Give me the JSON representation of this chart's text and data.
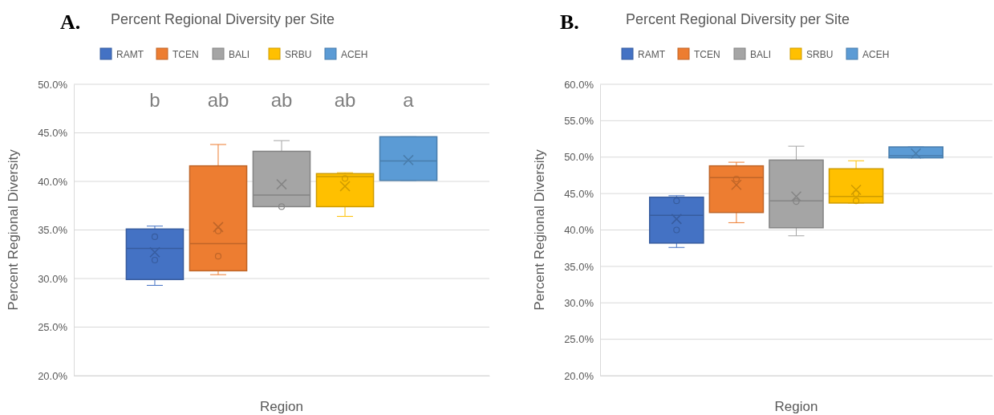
{
  "chart_data": [
    {
      "type": "box",
      "title": "A.",
      "subtitle": "Percent Regional Diversity per Site",
      "xlabel": "Region",
      "ylabel": "Percent Regional Diversity",
      "categories": [
        null
      ],
      "series": [
        {
          "name": "RAMT",
          "color": "#4472c4",
          "boxes": [
            {
              "low": 29.3,
              "q1": 29.9,
              "median": 33.1,
              "q3": 35.1,
              "high": 35.4,
              "mean": 32.7,
              "outliers": [
                34.3,
                31.9
              ]
            }
          ]
        },
        {
          "name": "TCEN",
          "color": "#ed7d31",
          "boxes": [
            {
              "low": 30.4,
              "q1": 30.8,
              "median": 33.6,
              "q3": 41.6,
              "high": 43.8,
              "mean": 35.3,
              "outliers": [
                34.9,
                32.3
              ]
            }
          ]
        },
        {
          "name": "BALI",
          "color": "#a5a5a5",
          "boxes": [
            {
              "low": 37.4,
              "q1": 37.4,
              "median": 38.6,
              "q3": 43.1,
              "high": 44.2,
              "mean": 39.7,
              "outliers": [
                37.4
              ]
            }
          ]
        },
        {
          "name": "SRBU",
          "color": "#ffc000",
          "boxes": [
            {
              "low": 36.4,
              "q1": 37.4,
              "median": 40.5,
              "q3": 40.8,
              "high": 40.9,
              "mean": 39.5,
              "outliers": [
                40.3
              ]
            }
          ]
        },
        {
          "name": "ACEH",
          "color": "#5b9bd5",
          "boxes": [
            {
              "low": 40.1,
              "q1": 40.1,
              "median": 42.1,
              "q3": 44.6,
              "high": 44.6,
              "mean": 42.2
            }
          ]
        }
      ],
      "ylim": [
        20,
        50
      ],
      "yticks": [
        {
          "value": 20,
          "label": "20.0%"
        },
        {
          "value": 25,
          "label": "25.0%"
        },
        {
          "value": 30,
          "label": "30.0%"
        },
        {
          "value": 35,
          "label": "35.0%"
        },
        {
          "value": 40,
          "label": "40.0%"
        },
        {
          "value": 45,
          "label": "45.0%"
        },
        {
          "value": 50,
          "label": "50.0%"
        }
      ],
      "annotations": [
        "b",
        "ab",
        "ab",
        "ab",
        "a"
      ],
      "grid": "y",
      "legend": "top"
    },
    {
      "type": "box",
      "title": "B.",
      "subtitle": "Percent Regional Diversity per Site",
      "xlabel": "Region",
      "ylabel": "Percent Regional Diversity",
      "categories": [
        null
      ],
      "series": [
        {
          "name": "RAMT",
          "color": "#4472c4",
          "boxes": [
            {
              "low": 37.6,
              "q1": 38.2,
              "median": 42.0,
              "q3": 44.5,
              "high": 44.7,
              "mean": 41.5,
              "outliers": [
                44.0,
                40.0
              ]
            }
          ]
        },
        {
          "name": "TCEN",
          "color": "#ed7d31",
          "boxes": [
            {
              "low": 41.0,
              "q1": 42.4,
              "median": 47.2,
              "q3": 48.8,
              "high": 49.3,
              "mean": 46.2,
              "outliers": [
                47.0
              ]
            }
          ]
        },
        {
          "name": "BALI",
          "color": "#a5a5a5",
          "boxes": [
            {
              "low": 39.2,
              "q1": 40.3,
              "median": 44.0,
              "q3": 49.6,
              "high": 51.5,
              "mean": 44.6,
              "outliers": [
                43.9
              ]
            }
          ]
        },
        {
          "name": "SRBU",
          "color": "#ffc000",
          "boxes": [
            {
              "low": 43.7,
              "q1": 43.7,
              "median": 44.6,
              "q3": 48.4,
              "high": 49.5,
              "mean": 45.5,
              "outliers": [
                45.0,
                44.0
              ]
            }
          ]
        },
        {
          "name": "ACEH",
          "color": "#5b9bd5",
          "boxes": [
            {
              "low": 49.9,
              "q1": 49.9,
              "median": 50.2,
              "q3": 51.4,
              "high": 51.4,
              "mean": 50.5
            }
          ]
        }
      ],
      "ylim": [
        20,
        60
      ],
      "yticks": [
        {
          "value": 20,
          "label": "20.0%"
        },
        {
          "value": 25,
          "label": "25.0%"
        },
        {
          "value": 30,
          "label": "30.0%"
        },
        {
          "value": 35,
          "label": "35.0%"
        },
        {
          "value": 40,
          "label": "40.0%"
        },
        {
          "value": 45,
          "label": "45.0%"
        },
        {
          "value": 50,
          "label": "50.0%"
        },
        {
          "value": 55,
          "label": "55.0%"
        },
        {
          "value": 60,
          "label": "60.0%"
        }
      ],
      "grid": "y",
      "legend": "top"
    }
  ]
}
